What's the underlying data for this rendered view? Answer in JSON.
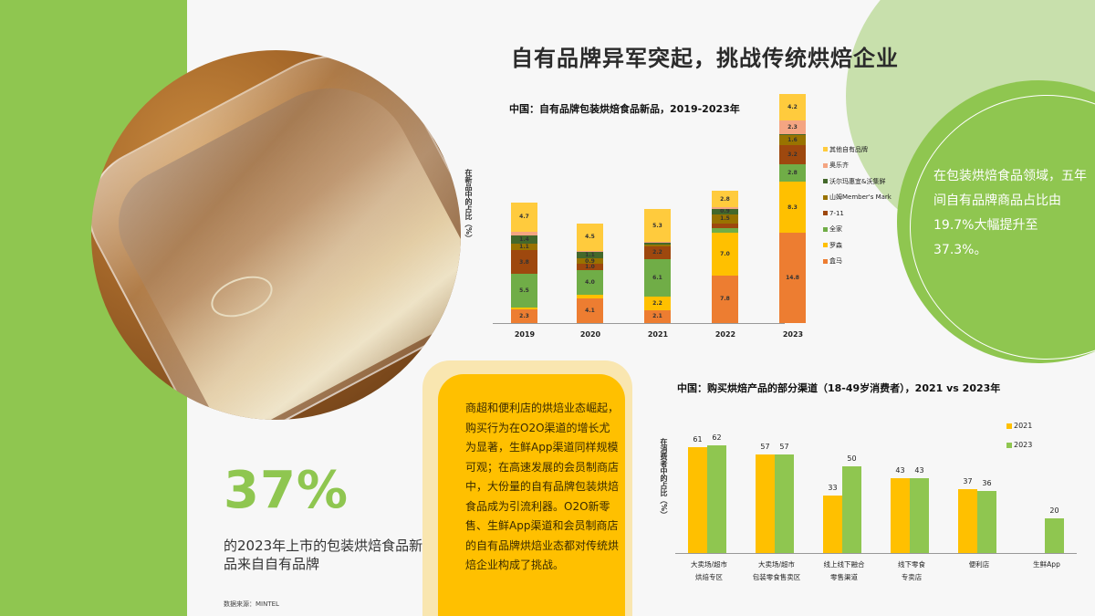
{
  "title": "自有品牌异军突起，挑战传统烘焙企业",
  "circle_note": "在包装烘焙食品领域，五年间自有品牌商品占比由19.7%大幅提升至37.3%。",
  "highlight": {
    "value": "37%",
    "description": "的2023年上市的包装烘焙食品新品来自自有品牌"
  },
  "card_text": "商超和便利店的烘焙业态崛起，购买行为在O2O渠道的增长尤为显著，生鲜App渠道同样规模可观；在高速发展的会员制商店中，大份量的自有品牌包装烘焙食品成为引流利器。O2O新零售、生鲜App渠道和会员制商店的自有品牌烘焙业态都对传统烘焙企业构成了挑战。",
  "source": "数据来源：MINTEL",
  "colors": {
    "green": "#8fc650",
    "light_green": "#c8e0ac",
    "yellow": "#ffc000",
    "orange": "#ed7d31"
  },
  "chart_data": [
    {
      "type": "bar",
      "stacked": true,
      "title": "中国：自有品牌包装烘焙食品新品，2019-2023年",
      "xlabel": "",
      "ylabel": "在新品中的占比（%）",
      "categories": [
        "2019",
        "2020",
        "2021",
        "2022",
        "2023"
      ],
      "legend_position": "right",
      "series": [
        {
          "name": "盒马",
          "color": "#ed7d31",
          "values": [
            2.3,
            4.1,
            2.1,
            7.8,
            14.8
          ]
        },
        {
          "name": "罗森",
          "color": "#ffc000",
          "values": [
            0.3,
            0.6,
            2.2,
            7.0,
            8.3
          ]
        },
        {
          "name": "全家",
          "color": "#70ad47",
          "values": [
            5.5,
            4.0,
            6.1,
            0.8,
            2.8
          ]
        },
        {
          "name": "7-11",
          "color": "#9e480e",
          "values": [
            3.8,
            1.0,
            2.2,
            0.7,
            3.2
          ]
        },
        {
          "name": "山姆Member's Mark",
          "color": "#997300",
          "values": [
            1.1,
            0.9,
            0.2,
            1.5,
            1.6
          ]
        },
        {
          "name": "沃尔玛惠宜&沃集鲜",
          "color": "#43682b",
          "values": [
            1.4,
            1.1,
            0.3,
            0.9,
            0.2
          ]
        },
        {
          "name": "奥乐齐",
          "color": "#f4a582",
          "values": [
            0.6,
            0.1,
            0.2,
            0.2,
            2.3
          ]
        },
        {
          "name": "其他自有品牌",
          "color": "#ffcb3d",
          "values": [
            4.7,
            4.5,
            5.3,
            2.8,
            4.2
          ]
        }
      ],
      "labels": {
        "2019": [
          "2.3",
          "0.3",
          "5.5",
          "3.8",
          "1.1",
          "1.4",
          "0.6",
          "4.7"
        ],
        "2020": [
          "4.1",
          "0.6",
          "4.0",
          "1.0",
          "0.9",
          "1.1",
          "0.1",
          "4.5"
        ],
        "2021": [
          "2.1",
          "2.2",
          "6.1",
          "2.2",
          "0.2",
          "0.3",
          "0.2",
          "5.3"
        ],
        "2022": [
          "7.8",
          "7.0",
          "0.8",
          "0.7",
          "1.5",
          "0.9",
          "0.2",
          "2.8"
        ],
        "2023": [
          "14.8",
          "8.3",
          "2.8",
          "3.2",
          "1.6",
          "0.2",
          "2.3",
          "4.2"
        ]
      },
      "legend_order": [
        "其他自有品牌",
        "奥乐齐",
        "沃尔玛惠宜&沃集鲜",
        "山姆Member's Mark",
        "7-11",
        "全家",
        "罗森",
        "盒马"
      ],
      "ylim": [
        0,
        40
      ],
      "grid": false
    },
    {
      "type": "bar",
      "title": "中国：购买烘焙产品的部分渠道（18-49岁消费者），2021 vs 2023年",
      "xlabel": "",
      "ylabel": "在消费者中的占比（%）",
      "categories": [
        "大卖场/超市烘焙专区",
        "大卖场/超市包装零食售卖区",
        "线上线下融合零售渠道",
        "线下零食专卖店",
        "便利店",
        "生鲜App"
      ],
      "category_lines": [
        [
          "大卖场/超市",
          "烘焙专区"
        ],
        [
          "大卖场/超市",
          "包装零食售卖区"
        ],
        [
          "线上线下融合",
          "零售渠道"
        ],
        [
          "线下零食",
          "专卖店"
        ],
        [
          "便利店"
        ],
        [
          "生鲜App"
        ]
      ],
      "series": [
        {
          "name": "2021",
          "color": "#ffc000",
          "values": [
            61,
            57,
            33,
            43,
            37,
            null
          ]
        },
        {
          "name": "2023",
          "color": "#8fc650",
          "values": [
            62,
            57,
            50,
            43,
            36,
            20
          ]
        }
      ],
      "legend_position": "right",
      "ylim": [
        0,
        70
      ],
      "grid": false
    }
  ]
}
